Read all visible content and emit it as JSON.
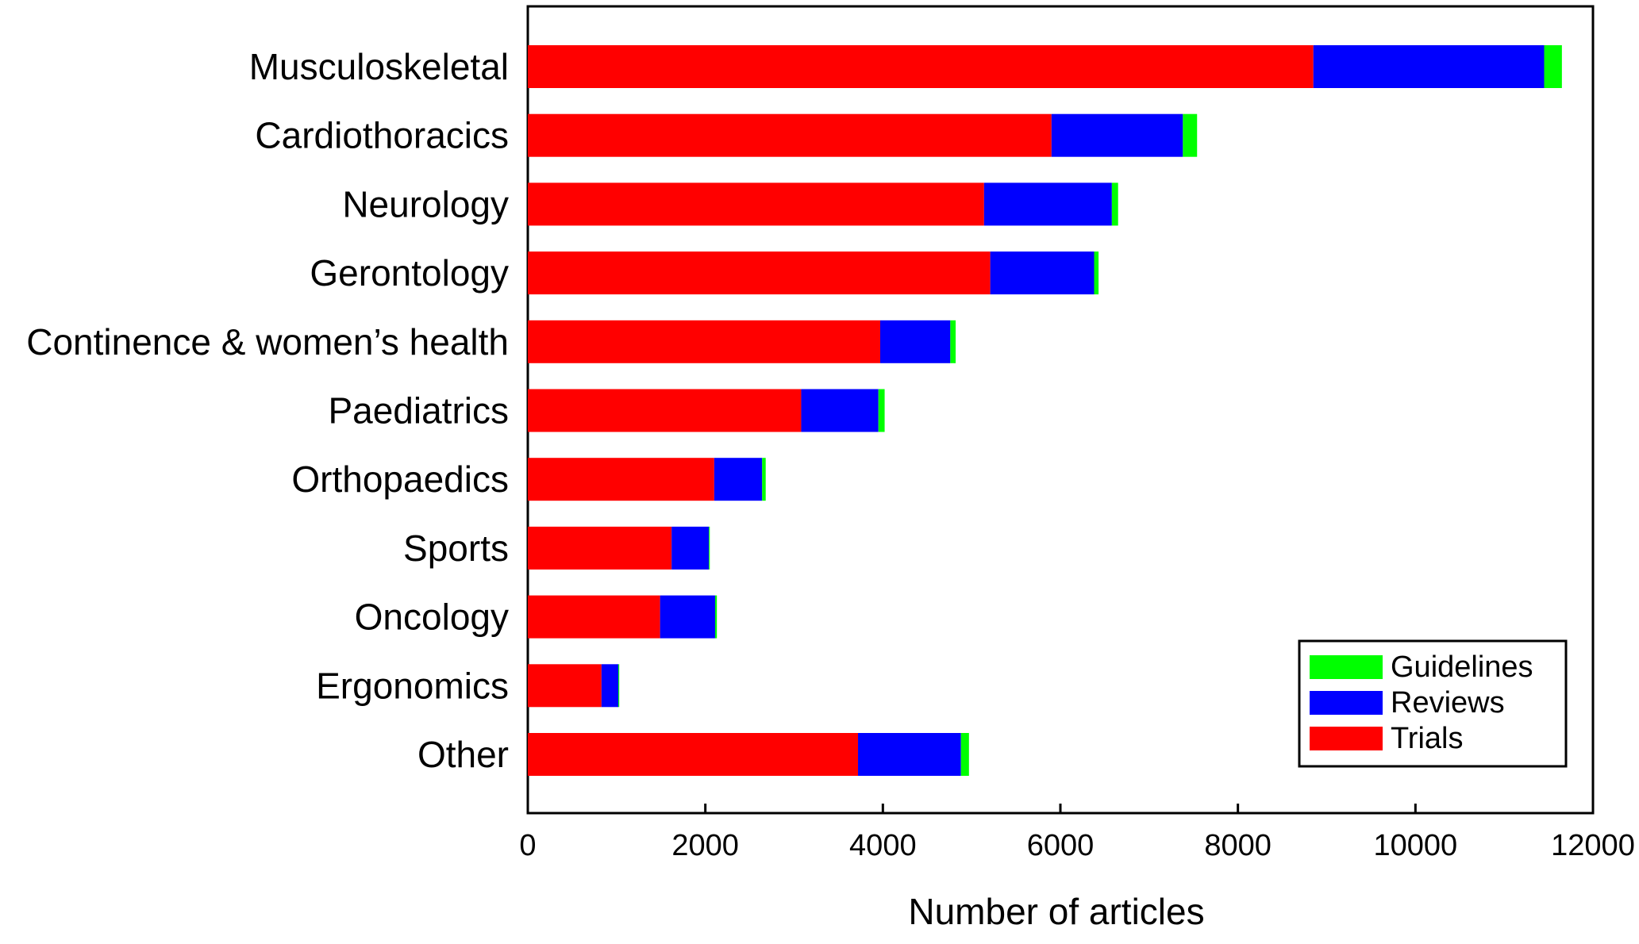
{
  "chart_data": {
    "type": "bar",
    "orientation": "horizontal",
    "stacked": true,
    "title": "",
    "xlabel": "Number of articles",
    "ylabel": "",
    "xlim": [
      0,
      12000
    ],
    "xticks": [
      0,
      2000,
      4000,
      6000,
      8000,
      10000,
      12000
    ],
    "grid": false,
    "legend_position": "bottom-right",
    "categories": [
      "Musculoskeletal",
      "Cardiothoracics",
      "Neurology",
      "Gerontology",
      "Continence & women’s health",
      "Paediatrics",
      "Orthopaedics",
      "Sports",
      "Oncology",
      "Ergonomics",
      "Other"
    ],
    "series": [
      {
        "name": "Trials",
        "color": "#ff0000",
        "values": [
          8850,
          5900,
          5140,
          5210,
          3970,
          3080,
          2100,
          1620,
          1490,
          830,
          3720
        ]
      },
      {
        "name": "Reviews",
        "color": "#0000ff",
        "values": [
          2600,
          1480,
          1440,
          1170,
          790,
          870,
          540,
          420,
          620,
          190,
          1160
        ]
      },
      {
        "name": "Guidelines",
        "color": "#00ff00",
        "values": [
          200,
          160,
          70,
          50,
          60,
          70,
          40,
          10,
          20,
          10,
          90
        ]
      }
    ],
    "legend_order": [
      "Guidelines",
      "Reviews",
      "Trials"
    ]
  }
}
